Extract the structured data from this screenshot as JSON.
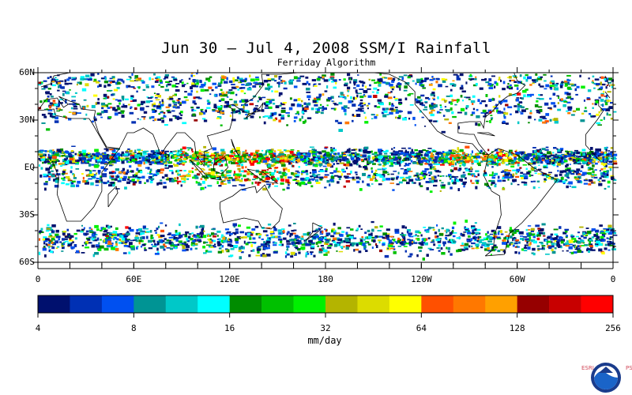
{
  "title": "Jun 30 – Jul 4, 2008 SSM/I Rainfall",
  "subtitle": "Ferriday Algorithm",
  "lat_labels": [
    "60N",
    "30N",
    "EQ",
    "30S",
    "60S"
  ],
  "lat_values": [
    60,
    30,
    0,
    -30,
    -60
  ],
  "lon_labels": [
    "0",
    "60E",
    "120E",
    "180",
    "120W",
    "60W",
    "0"
  ],
  "lon_values": [
    0,
    60,
    120,
    180,
    240,
    300,
    360
  ],
  "colorbar": {
    "units": "mm/day",
    "tick_labels": [
      "4",
      "8",
      "16",
      "32",
      "64",
      "128",
      "256"
    ],
    "colors": [
      "#00106e",
      "#0030b4",
      "#0050f0",
      "#009494",
      "#00c8c8",
      "#00ffff",
      "#008c00",
      "#00c000",
      "#00f000",
      "#b4b400",
      "#dcdc00",
      "#ffff00",
      "#ff5000",
      "#ff7800",
      "#ffa000",
      "#960000",
      "#c80000",
      "#ff0000"
    ]
  },
  "logo": {
    "left_letters": "ESRL",
    "right_letters": "PSD",
    "icon": "noaa-logo-icon"
  }
}
